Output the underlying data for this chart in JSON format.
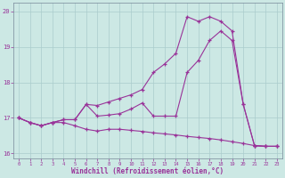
{
  "bg_color": "#cce8e4",
  "line_color": "#993399",
  "grid_color": "#aacccc",
  "xlim_min": -0.5,
  "xlim_max": 23.5,
  "ylim_min": 15.85,
  "ylim_max": 20.25,
  "yticks": [
    16,
    17,
    18,
    19,
    20
  ],
  "xticks": [
    0,
    1,
    2,
    3,
    4,
    5,
    6,
    7,
    8,
    9,
    10,
    11,
    12,
    13,
    14,
    15,
    16,
    17,
    18,
    19,
    20,
    21,
    22,
    23
  ],
  "xlabel": "Windchill (Refroidissement éolien,°C)",
  "line1_x": [
    0,
    1,
    2,
    3,
    4,
    5,
    6,
    7,
    8,
    9,
    10,
    11,
    12,
    13,
    14,
    15,
    16,
    17,
    18,
    19,
    20,
    21,
    22,
    23
  ],
  "line1_y": [
    17.0,
    16.87,
    16.78,
    16.87,
    16.87,
    16.78,
    16.68,
    16.63,
    16.68,
    16.68,
    16.65,
    16.62,
    16.58,
    16.55,
    16.52,
    16.48,
    16.45,
    16.42,
    16.38,
    16.33,
    16.28,
    16.22,
    16.2,
    16.2
  ],
  "line2_x": [
    0,
    1,
    2,
    3,
    4,
    5,
    6,
    7,
    8,
    9,
    10,
    11,
    12,
    13,
    14,
    15,
    16,
    17,
    18,
    19,
    20,
    21,
    22,
    23
  ],
  "line2_y": [
    17.0,
    16.87,
    16.78,
    16.87,
    16.95,
    16.95,
    17.38,
    17.05,
    17.08,
    17.12,
    17.25,
    17.42,
    17.05,
    17.05,
    17.05,
    18.28,
    18.62,
    19.18,
    19.45,
    19.18,
    17.38,
    16.22,
    16.2,
    16.2
  ],
  "line3_x": [
    0,
    1,
    2,
    3,
    4,
    5,
    6,
    7,
    8,
    9,
    10,
    11,
    12,
    13,
    14,
    15,
    16,
    17,
    18,
    19,
    20,
    21,
    22,
    23
  ],
  "line3_y": [
    17.0,
    16.87,
    16.78,
    16.87,
    16.95,
    16.95,
    17.38,
    17.35,
    17.45,
    17.55,
    17.65,
    17.8,
    18.28,
    18.52,
    18.82,
    19.85,
    19.72,
    19.85,
    19.72,
    19.45,
    17.38,
    16.22,
    16.2,
    16.2
  ]
}
